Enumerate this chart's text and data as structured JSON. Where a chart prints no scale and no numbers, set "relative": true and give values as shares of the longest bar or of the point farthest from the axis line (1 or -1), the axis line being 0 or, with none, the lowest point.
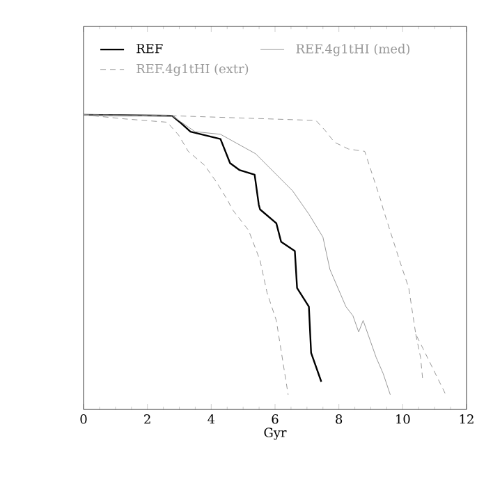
{
  "chart_data": {
    "type": "line",
    "xlabel": "Gyr",
    "xlim": [
      0,
      12
    ],
    "xticks": [
      0,
      2,
      4,
      6,
      8,
      10,
      12
    ],
    "relative": true,
    "tick_labels": "x",
    "legend": "top",
    "marker": "none",
    "series": [
      {
        "name": "REF",
        "color": "#000000",
        "line_style": "solid",
        "x": [
          0,
          2.77,
          3.06,
          3.35,
          4.29,
          4.59,
          4.88,
          5.36,
          5.49,
          5.53,
          6.04,
          6.19,
          6.62,
          6.69,
          7.06,
          7.13,
          7.45
        ],
        "values": [
          1.0,
          0.997,
          0.971,
          0.943,
          0.918,
          0.836,
          0.813,
          0.797,
          0.695,
          0.679,
          0.632,
          0.569,
          0.538,
          0.412,
          0.349,
          0.192,
          0.094
        ]
      },
      {
        "name": "REF.4g1tHI (med)",
        "color": "#999999",
        "line_style": "solid",
        "x": [
          0,
          2.77,
          3.49,
          4.29,
          5.39,
          6.55,
          7.06,
          7.5,
          7.72,
          8.22,
          8.44,
          8.62,
          8.76,
          9.17,
          9.39,
          9.61
        ],
        "values": [
          1.0,
          0.997,
          0.943,
          0.934,
          0.868,
          0.742,
          0.663,
          0.585,
          0.475,
          0.349,
          0.318,
          0.263,
          0.302,
          0.176,
          0.121,
          0.05
        ]
      },
      {
        "name": "REF.4g1tHI (extr)",
        "color": "#999999",
        "line_style": "dashed",
        "x": [
          0,
          2.77,
          7.28,
          7.57,
          7.86,
          8.3,
          8.81,
          9.31,
          9.39,
          9.9,
          10.19,
          10.41,
          10.63,
          10.99,
          11.35
        ],
        "values": [
          1.0,
          0.997,
          0.981,
          0.947,
          0.907,
          0.884,
          0.876,
          0.711,
          0.679,
          0.506,
          0.412,
          0.255,
          0.208,
          0.129,
          0.05
        ]
      },
      {
        "color": "#999999",
        "line_style": "dashed",
        "x": [
          0,
          1.31,
          2.62,
          2.98,
          3.28,
          3.79,
          4.15,
          4.51,
          4.66,
          5.17,
          5.53,
          5.75,
          6.04,
          6.41
        ],
        "values": [
          1.0,
          0.986,
          0.975,
          0.931,
          0.876,
          0.829,
          0.774,
          0.711,
          0.679,
          0.608,
          0.506,
          0.396,
          0.302,
          0.05
        ]
      },
      {
        "color": "#999999",
        "line_style": "dashed",
        "x": [
          10.41,
          10.56,
          10.63
        ],
        "values": [
          0.255,
          0.176,
          0.097
        ]
      }
    ]
  }
}
